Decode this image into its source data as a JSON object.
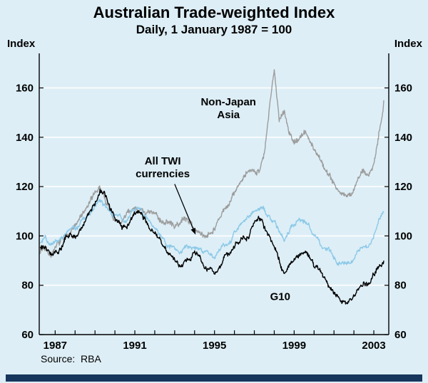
{
  "page": {
    "source_note": "Source:  RBA"
  },
  "chart_data": {
    "type": "line",
    "title": "Australian Trade-weighted Index",
    "subtitle": "Daily, 1 January 1987 = 100",
    "ylabel": "Index",
    "xlabel": "",
    "source": "RBA",
    "grid": "horizontal-white",
    "background": "#ddeef6",
    "xlim": [
      1986.2,
      2003.75
    ],
    "ylim": [
      60,
      160
    ],
    "yticks": [
      60,
      80,
      100,
      120,
      140,
      160
    ],
    "xtick_labels": [
      1987,
      1991,
      1995,
      1999,
      2003
    ],
    "x": [
      1986.25,
      1986.5,
      1986.75,
      1987,
      1987.25,
      1987.5,
      1987.75,
      1988,
      1988.25,
      1988.5,
      1988.75,
      1989,
      1989.25,
      1989.5,
      1989.75,
      1990,
      1990.25,
      1990.5,
      1990.75,
      1991,
      1991.25,
      1991.5,
      1991.75,
      1992,
      1992.25,
      1992.5,
      1992.75,
      1993,
      1993.25,
      1993.5,
      1993.75,
      1994,
      1994.25,
      1994.5,
      1994.75,
      1995,
      1995.25,
      1995.5,
      1995.75,
      1996,
      1996.25,
      1996.5,
      1996.75,
      1997,
      1997.25,
      1997.5,
      1997.75,
      1998,
      1998.25,
      1998.5,
      1998.75,
      1999,
      1999.25,
      1999.5,
      1999.75,
      2000,
      2000.25,
      2000.5,
      2000.75,
      2001,
      2001.25,
      2001.5,
      2001.75,
      2002,
      2002.25,
      2002.5,
      2002.75,
      2003,
      2003.25,
      2003.5
    ],
    "series": [
      {
        "id": "non-japan-asia",
        "name": "Non-Japan Asia",
        "color": "#9d9d9d",
        "values": [
          94,
          96,
          93,
          95,
          97,
          99,
          102,
          104,
          107,
          110,
          113,
          117,
          120,
          115,
          110,
          106,
          105,
          107,
          110,
          112,
          111,
          110,
          109,
          108,
          107,
          106,
          105,
          104,
          105,
          107,
          106,
          103,
          101,
          100,
          102,
          104,
          107,
          110,
          113,
          117,
          121,
          124,
          125,
          126,
          128,
          133,
          150,
          168,
          148,
          152,
          142,
          138,
          140,
          142,
          139,
          136,
          132,
          128,
          125,
          122,
          119,
          117,
          116,
          119,
          123,
          126,
          124,
          130,
          142,
          155
        ]
      },
      {
        "id": "all-twi",
        "name": "All TWI currencies",
        "color": "#8cc9e8",
        "values": [
          97,
          99,
          96,
          97,
          98,
          100,
          102,
          103,
          105,
          107,
          110,
          112,
          114,
          112,
          110,
          109,
          108,
          107,
          109,
          111,
          112,
          109,
          106,
          103,
          101,
          99,
          97,
          95,
          93,
          94,
          95,
          97,
          95,
          93,
          92,
          92,
          94,
          96,
          98,
          101,
          103,
          105,
          107,
          109,
          111,
          110,
          108,
          105,
          102,
          99,
          103,
          106,
          107,
          106,
          104,
          101,
          98,
          95,
          93,
          91,
          89,
          88,
          90,
          92,
          95,
          97,
          96,
          100,
          105,
          110
        ]
      },
      {
        "id": "g10",
        "name": "G10",
        "color": "#000000",
        "values": [
          95,
          97,
          94,
          93,
          95,
          99,
          102,
          100,
          103,
          106,
          110,
          113,
          119,
          117,
          112,
          108,
          105,
          103,
          105,
          108,
          110,
          106,
          103,
          100,
          98,
          95,
          93,
          90,
          88,
          89,
          91,
          94,
          92,
          89,
          87,
          85,
          88,
          91,
          93,
          96,
          98,
          100,
          102,
          105,
          106,
          103,
          100,
          95,
          90,
          85,
          88,
          90,
          93,
          94,
          91,
          88,
          85,
          82,
          79,
          76,
          74,
          72,
          74,
          76,
          79,
          81,
          80,
          84,
          88,
          90
        ]
      }
    ],
    "annotations": [
      {
        "id": "non-japan-asia",
        "lines": [
          "Non-Japan",
          "Asia"
        ],
        "x": 1995.7,
        "y": 153
      },
      {
        "id": "all-twi",
        "lines": [
          "All TWI",
          "currencies"
        ],
        "x": 1992.4,
        "y": 129
      },
      {
        "id": "g10",
        "lines": [
          "G10"
        ],
        "x": 1998.3,
        "y": 74
      }
    ],
    "arrow": {
      "x1": 1993.0,
      "y1": 121,
      "x2": 1994.05,
      "y2": 100.5
    }
  }
}
